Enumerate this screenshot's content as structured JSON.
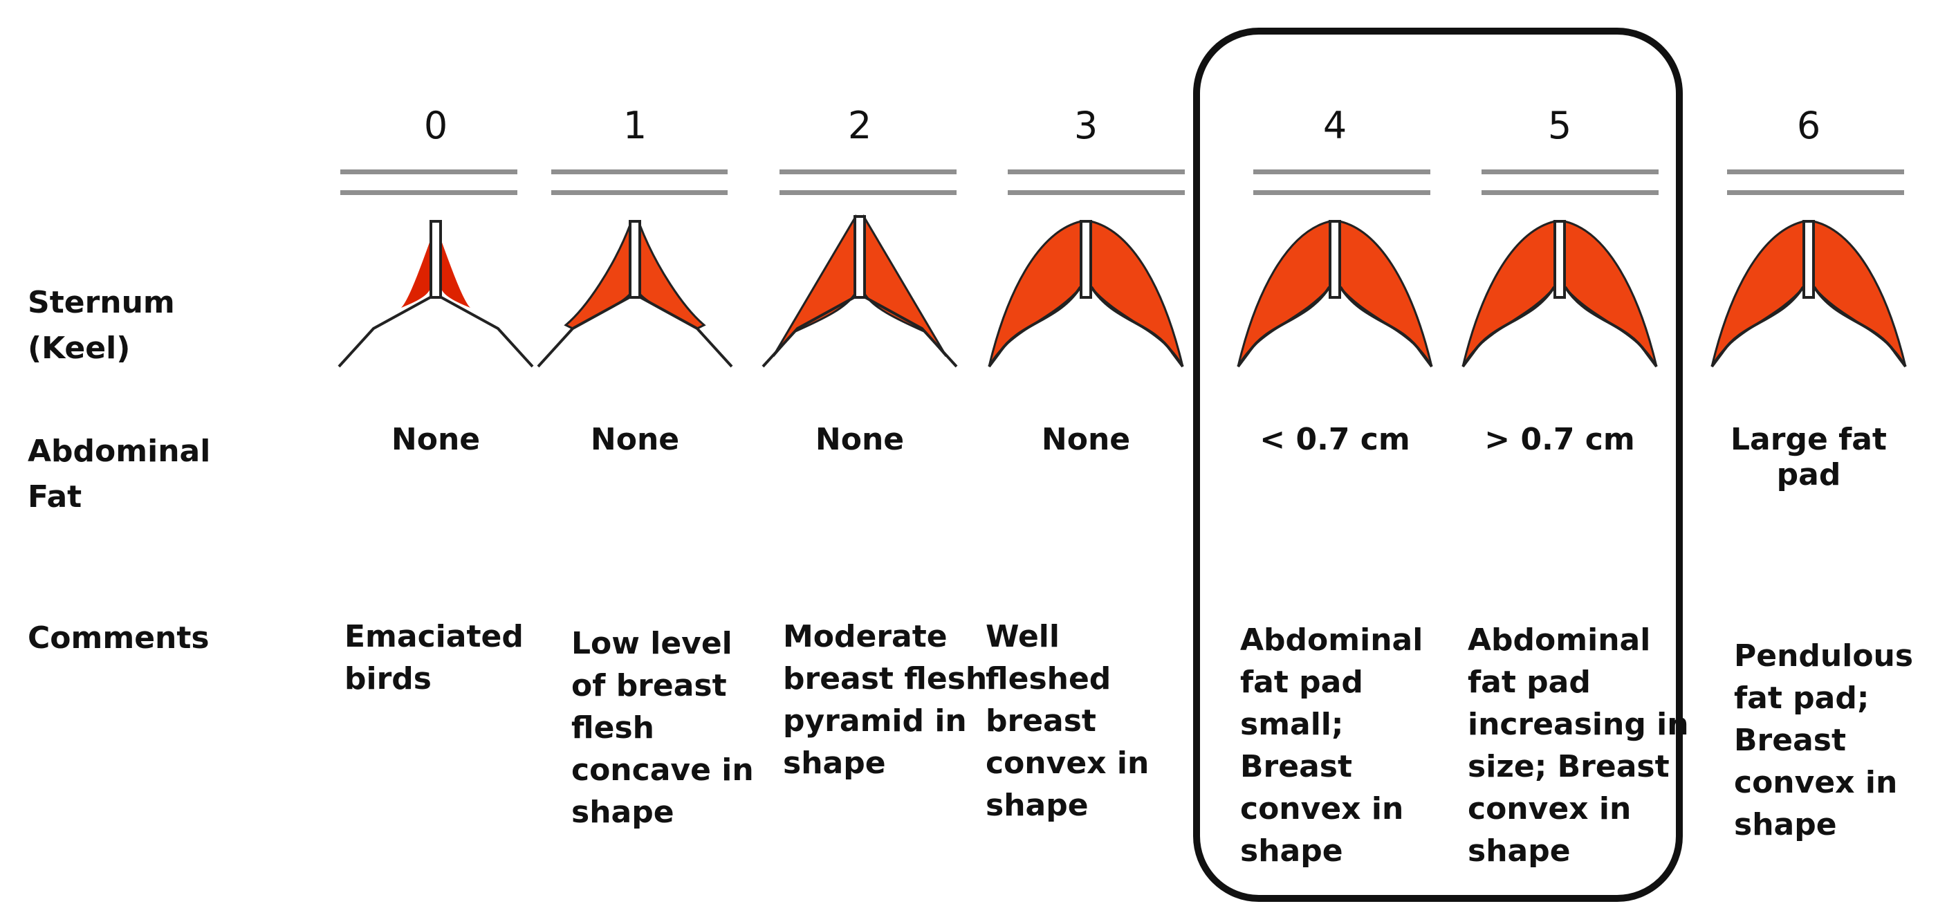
{
  "row_labels": {
    "sternum": "Sternum\n(Keel)",
    "abdominal_fat": "Abdominal\nFat",
    "comments": "Comments"
  },
  "colors": {
    "flesh": "#ee4411",
    "outline": "#222222",
    "rule": "#8f8f8f"
  },
  "stages": [
    {
      "score": "0",
      "fat": "None",
      "comment": "Emaciated\nbirds",
      "shape": "emaciated"
    },
    {
      "score": "1",
      "fat": "None",
      "comment": "Low level\nof breast\nflesh\nconcave in\nshape",
      "shape": "concave"
    },
    {
      "score": "2",
      "fat": "None",
      "comment": "Moderate\nbreast flesh\npyramid in\nshape",
      "shape": "pyramid"
    },
    {
      "score": "3",
      "fat": "None",
      "comment": "Well\nfleshed\nbreast\nconvex in\nshape",
      "shape": "convex"
    },
    {
      "score": "4",
      "fat": "< 0.7 cm",
      "comment": "Abdominal\nfat pad\nsmall;\nBreast\nconvex in\nshape",
      "shape": "convex"
    },
    {
      "score": "5",
      "fat": "> 0.7 cm",
      "comment": "Abdominal\nfat pad\nincreasing in\nsize; Breast\nconvex in\nshape",
      "shape": "convex"
    },
    {
      "score": "6",
      "fat": "Large fat pad",
      "comment": "Pendulous\nfat pad;\nBreast\nconvex in\nshape",
      "shape": "convex"
    }
  ],
  "highlight": {
    "stages": [
      "4",
      "5"
    ]
  }
}
